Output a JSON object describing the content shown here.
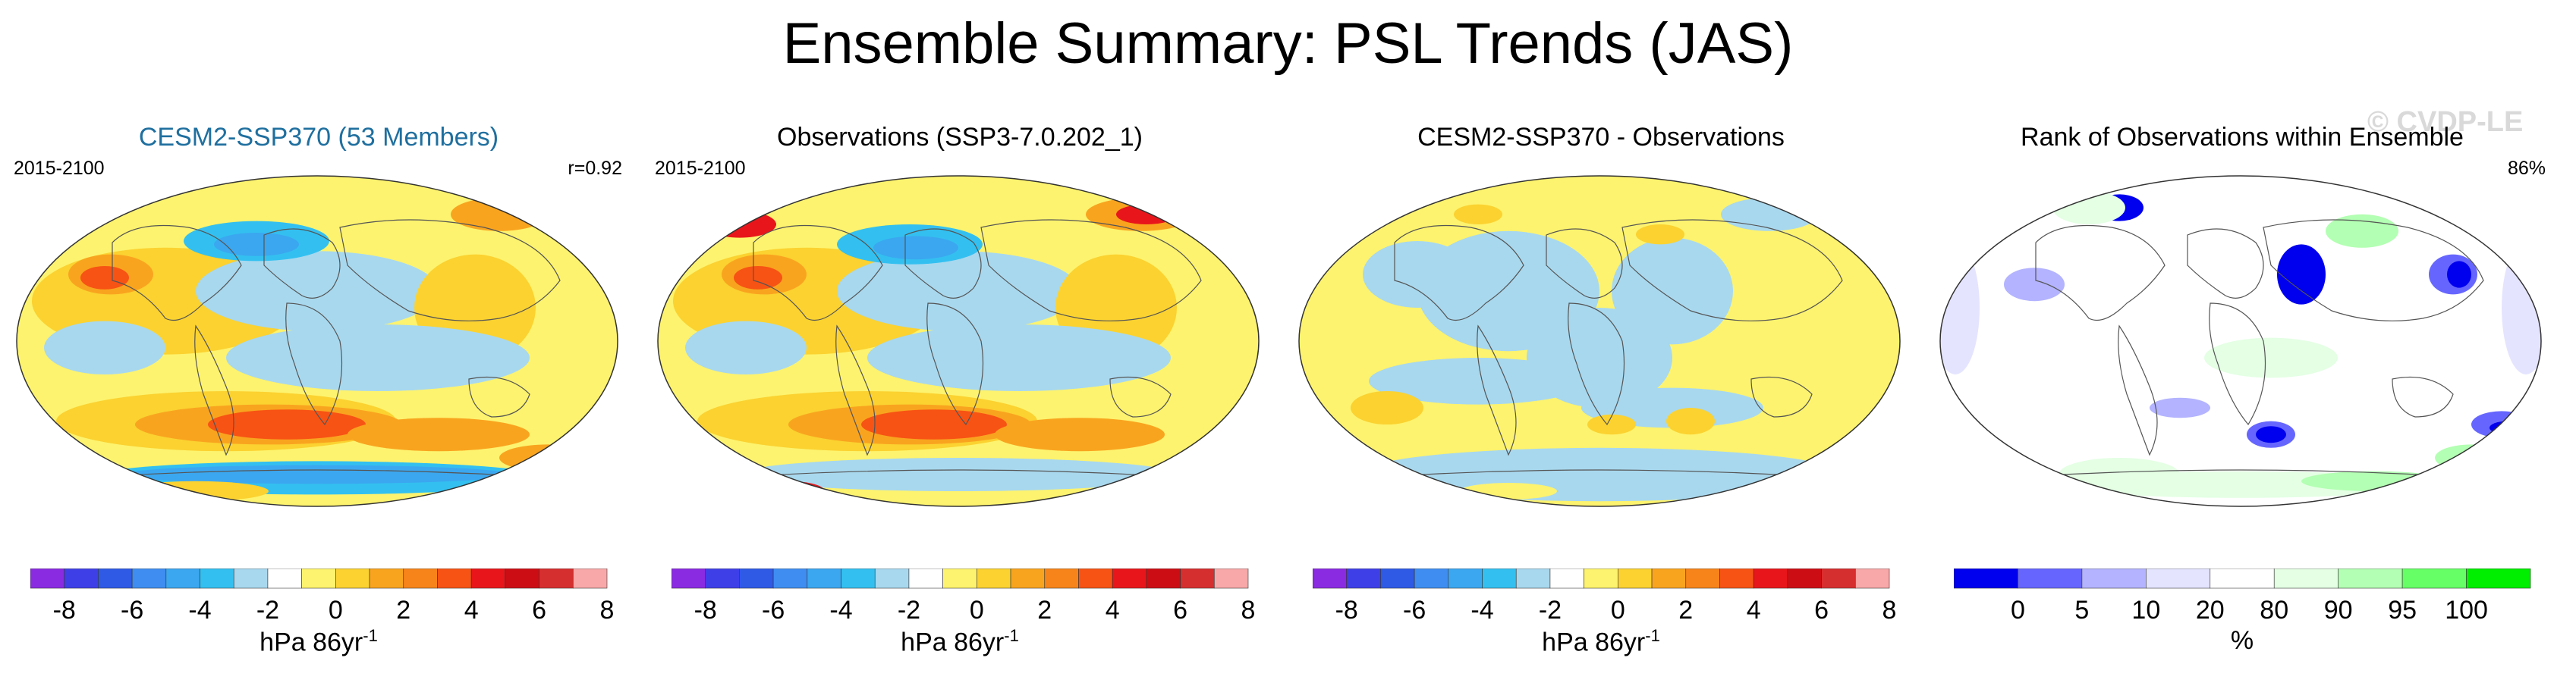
{
  "title": "Ensemble Summary: PSL Trends (JAS)",
  "watermark": "© CVDP-LE",
  "palette": [
    "#8a2be2",
    "#3f3fe8",
    "#2f5ae6",
    "#3f8df0",
    "#3ba7f0",
    "#33c0f0",
    "#a8d8ee",
    "#ffffff",
    "#fdf36e",
    "#fbd230",
    "#f9a41f",
    "#f7841a",
    "#f75314",
    "#e8161a",
    "#cc0e14",
    "#d62f2f",
    "#f8a8a8"
  ],
  "rank_palette": [
    "#0000ee",
    "#6666ff",
    "#b3b3ff",
    "#e4e4ff",
    "#ffffff",
    "#e4ffe4",
    "#b3ffb3",
    "#66ff66",
    "#00ee00"
  ],
  "panels": [
    {
      "title": "CESM2-SSP370 (53 Members)",
      "title_color": "#1f6f9f",
      "left_text": "2015-2100",
      "right_text": "r=0.92",
      "map_style": "trend-strong",
      "colorbar": {
        "type": "trend",
        "ticks": [
          "-8",
          "-6",
          "-4",
          "-2",
          "0",
          "2",
          "4",
          "6",
          "8"
        ]
      },
      "unit_label": "hPa 86yr",
      "unit_sup": "-1"
    },
    {
      "title": "Observations (SSP3-7.0.202_1)",
      "title_color": "#000000",
      "left_text": "2015-2100",
      "right_text": "",
      "map_style": "trend-obs",
      "colorbar": {
        "type": "trend",
        "ticks": [
          "-8",
          "-6",
          "-4",
          "-2",
          "0",
          "2",
          "4",
          "6",
          "8"
        ]
      },
      "unit_label": "hPa 86yr",
      "unit_sup": "-1"
    },
    {
      "title": "CESM2-SSP370 - Observations",
      "title_color": "#000000",
      "left_text": "",
      "right_text": "",
      "map_style": "diff",
      "colorbar": {
        "type": "trend",
        "ticks": [
          "-8",
          "-6",
          "-4",
          "-2",
          "0",
          "2",
          "4",
          "6",
          "8"
        ]
      },
      "unit_label": "hPa 86yr",
      "unit_sup": "-1"
    },
    {
      "title": "Rank of Observations within Ensemble",
      "title_color": "#000000",
      "left_text": "",
      "right_text": "86%",
      "map_style": "rank",
      "colorbar": {
        "type": "rank",
        "ticks": [
          "0",
          "5",
          "10",
          "20",
          "80",
          "90",
          "95",
          "100"
        ]
      },
      "unit_label": "%",
      "unit_sup": ""
    }
  ],
  "chart_data": [
    {
      "type": "heatmap",
      "title": "CESM2-SSP370 (53 Members)",
      "period": "2015-2100",
      "pattern_correlation": 0.92,
      "colorbar_levels": [
        -8,
        -7,
        -6,
        -5,
        -4,
        -3,
        -2,
        -1,
        0,
        1,
        2,
        3,
        4,
        5,
        6,
        7,
        8
      ],
      "units": "hPa 86yr-1"
    },
    {
      "type": "heatmap",
      "title": "Observations (SSP3-7.0.202_1)",
      "period": "2015-2100",
      "colorbar_levels": [
        -8,
        -7,
        -6,
        -5,
        -4,
        -3,
        -2,
        -1,
        0,
        1,
        2,
        3,
        4,
        5,
        6,
        7,
        8
      ],
      "units": "hPa 86yr-1"
    },
    {
      "type": "heatmap",
      "title": "CESM2-SSP370 - Observations",
      "colorbar_levels": [
        -8,
        -7,
        -6,
        -5,
        -4,
        -3,
        -2,
        -1,
        0,
        1,
        2,
        3,
        4,
        5,
        6,
        7,
        8
      ],
      "units": "hPa 86yr-1"
    },
    {
      "type": "heatmap",
      "title": "Rank of Observations within Ensemble",
      "summary": "86%",
      "colorbar_levels": [
        0,
        5,
        10,
        20,
        80,
        90,
        95,
        100
      ],
      "units": "%"
    }
  ]
}
